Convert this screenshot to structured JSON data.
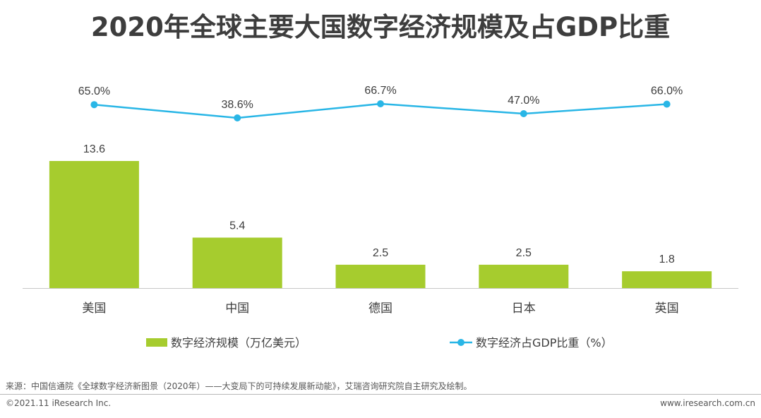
{
  "title": "2020年全球主要大国数字经济规模及占GDP比重",
  "chart_data": {
    "type": "bar+line",
    "title": "2020年全球主要大国数字经济规模及占GDP比重",
    "categories": [
      "美国",
      "中国",
      "德国",
      "日本",
      "英国"
    ],
    "series": [
      {
        "name": "数字经济规模（万亿美元）",
        "type": "bar",
        "values": [
          13.6,
          5.4,
          2.5,
          2.5,
          1.8
        ],
        "labels": [
          "13.6",
          "5.4",
          "2.5",
          "2.5",
          "1.8"
        ]
      },
      {
        "name": "数字经济占GDP比重（%）",
        "type": "line",
        "values": [
          65.0,
          38.6,
          66.7,
          47.0,
          66.0
        ],
        "labels": [
          "65.0%",
          "38.6%",
          "66.7%",
          "47.0%",
          "66.0%"
        ]
      }
    ],
    "bar_ylim": [
      0,
      13.6
    ],
    "line_ylim": [
      38.6,
      66.7
    ],
    "legend_position": "bottom",
    "grid": false
  },
  "colors": {
    "bar": "#a6cc2e",
    "line": "#29b6e6",
    "text": "#3d3d3d"
  },
  "footer": {
    "source": "来源：中国信通院《全球数字经济新图景（2020年）——大变局下的可持续发展新动能》，艾瑞咨询研究院自主研究及绘制。",
    "copyright": "©2021.11 iResearch Inc.",
    "website": "www.iresearch.com.cn"
  }
}
